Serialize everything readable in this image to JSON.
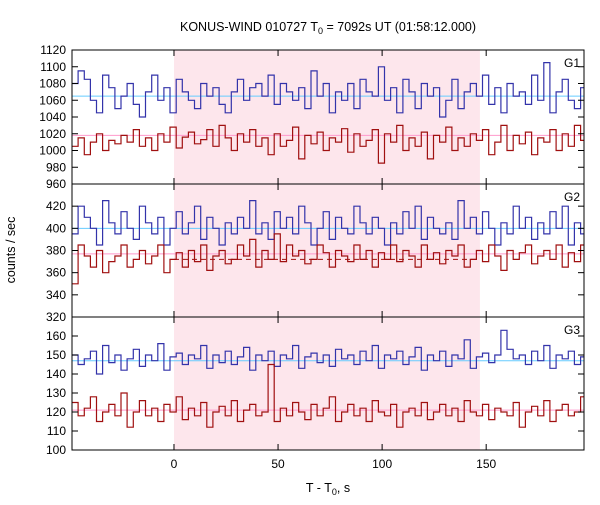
{
  "chart_data": {
    "type": "line",
    "title": "KONUS-WIND 010727 T",
    "title_subscript": "0",
    "title_suffix": " = 7092s UT (01:58:12.000)",
    "xlabel": "T - T",
    "xlabel_subscript": "0",
    "xlabel_suffix": ", s",
    "ylabel": "counts / sec",
    "xlim": [
      -49,
      197
    ],
    "x_ticks": [
      0,
      50,
      100,
      150
    ],
    "x_tick_labels": [
      "0",
      "50",
      "100",
      "150"
    ],
    "shaded_interval": [
      0,
      147
    ],
    "bin_width": 2.944,
    "colors": {
      "high_series": "#3333aa",
      "low_series": "#a01010",
      "high_background": "#66ccff",
      "low_background": "#ff99cc",
      "shade": "#fde6ec",
      "dashed_fit": "#a01010"
    },
    "panels": [
      {
        "label": "G1",
        "ylim": [
          960,
          1120
        ],
        "y_ticks": [
          960,
          980,
          1000,
          1020,
          1040,
          1060,
          1080,
          1100,
          1120
        ],
        "y_tick_labels": [
          "960",
          "980",
          "1000",
          "1020",
          "1040",
          "1060",
          "1080",
          "1100",
          "1120"
        ],
        "high_background": 1065,
        "low_background": 1018,
        "dashed_level": null,
        "high_series": [
          1080,
          1095,
          1085,
          1060,
          1045,
          1090,
          1075,
          1050,
          1065,
          1080,
          1055,
          1040,
          1070,
          1090,
          1060,
          1075,
          1045,
          1085,
          1070,
          1060,
          1050,
          1080,
          1065,
          1075,
          1055,
          1045,
          1070,
          1085,
          1060,
          1075,
          1080,
          1065,
          1090,
          1055,
          1080,
          1070,
          1060,
          1075,
          1050,
          1095,
          1065,
          1080,
          1045,
          1070,
          1060,
          1080,
          1050,
          1085,
          1070,
          1065,
          1100,
          1060,
          1075,
          1045,
          1085,
          1070,
          1050,
          1080,
          1065,
          1075,
          1040,
          1060,
          1085,
          1050,
          1070,
          1080,
          1065,
          1090,
          1055,
          1075,
          1045,
          1080,
          1065,
          1070,
          1055,
          1090,
          1060,
          1105,
          1045,
          1070,
          1085,
          1060,
          1050,
          1075,
          1065,
          1080,
          1045,
          1085,
          1060,
          1070,
          1055,
          1075,
          1080,
          1050,
          1065,
          1070,
          1085,
          1055,
          1075,
          1060,
          1045,
          1080,
          1065,
          1070,
          1055,
          1040,
          1085,
          1060,
          1075,
          1050,
          1070,
          1080,
          1065,
          1075,
          1060,
          1050,
          1080,
          1070,
          1055,
          1065,
          1075,
          1045,
          1085,
          1060,
          1070,
          1080,
          1055,
          1075,
          1065,
          1060,
          1050,
          1070,
          1085,
          1060,
          1075,
          1050,
          1080,
          1065
        ],
        "low_series": [
          1005,
          1015,
          995,
          1010,
          1020,
          1000,
          1012,
          1008,
          1018,
          1010,
          1025,
          1005,
          1015,
          1000,
          1020,
          1010,
          1028,
          1003,
          1016,
          1022,
          1008,
          1013,
          1025,
          1005,
          1030,
          1015,
          1000,
          1020,
          1010,
          1025,
          1005,
          1015,
          995,
          1020,
          1005,
          1012,
          1028,
          990,
          1018,
          1008,
          1022,
          1000,
          1015,
          1010,
          1026,
          998,
          1020,
          1005,
          1012,
          1025,
          985,
          1020,
          1010,
          1030,
          1000,
          1015,
          1005,
          1022,
          990,
          1018,
          1010,
          1028,
          1000,
          1015,
          1005,
          1020,
          1012,
          1025,
          995,
          1010,
          1030,
          1000,
          1018,
          1008,
          1022,
          995,
          1015,
          1010,
          1025,
          1000,
          1020,
          1005,
          1030,
          1012,
          990,
          1020,
          1008,
          1028,
          1000,
          1015,
          1010,
          1020,
          1005,
          1040,
          1018,
          1030,
          1000,
          1015,
          1022,
          1010,
          1028,
          1005,
          1020,
          1012,
          1000,
          1025,
          1015,
          1030,
          1010,
          995,
          1020,
          1005,
          1012,
          1025,
          1000,
          1015,
          1022,
          1010,
          1028,
          1005,
          1018,
          1000,
          1025,
          1015,
          1010,
          1030,
          1000,
          1020,
          1005,
          1015,
          1025,
          1012,
          1008,
          1022,
          1000,
          1018,
          1010,
          1015
        ]
      },
      {
        "label": "G2",
        "ylim": [
          320,
          440
        ],
        "y_ticks": [
          320,
          340,
          360,
          380,
          400,
          420
        ],
        "y_tick_labels": [
          "320",
          "340",
          "360",
          "380",
          "400",
          "420"
        ],
        "high_background": 400,
        "low_background": 377,
        "dashed_level": 372,
        "high_series": [
          395,
          420,
          410,
          400,
          385,
          425,
          405,
          395,
          415,
          400,
          390,
          420,
          405,
          395,
          410,
          385,
          400,
          415,
          395,
          405,
          420,
          390,
          410,
          400,
          385,
          405,
          395,
          410,
          400,
          425,
          395,
          405,
          390,
          415,
          400,
          410,
          395,
          420,
          405,
          385,
          400,
          415,
          390,
          410,
          400,
          395,
          420,
          405,
          395,
          410,
          400,
          385,
          405,
          395,
          415,
          400,
          420,
          390,
          410,
          400,
          395,
          405,
          390,
          425,
          400,
          410,
          395,
          415,
          400,
          385,
          405,
          395,
          420,
          400,
          410,
          390,
          405,
          395,
          415,
          400,
          420,
          385,
          405,
          395,
          410,
          400,
          390,
          415,
          405,
          395,
          420,
          400,
          410,
          385,
          405,
          395,
          400,
          415,
          390,
          410,
          400,
          395,
          420,
          405,
          385,
          400,
          410,
          395,
          415,
          400,
          390,
          405,
          395,
          420,
          400,
          410,
          385,
          405,
          395,
          415,
          400,
          390,
          410,
          405,
          395,
          420,
          400,
          385,
          410,
          395,
          405,
          400,
          415,
          390,
          405,
          400,
          410,
          395
        ],
        "low_series": [
          350,
          385,
          375,
          365,
          380,
          360,
          370,
          375,
          385,
          365,
          372,
          380,
          368,
          375,
          385,
          360,
          372,
          378,
          365,
          380,
          370,
          385,
          362,
          375,
          380,
          368,
          372,
          385,
          375,
          390,
          365,
          380,
          372,
          395,
          370,
          385,
          375,
          380,
          368,
          372,
          385,
          378,
          365,
          380,
          375,
          370,
          385,
          372,
          380,
          365,
          378,
          372,
          385,
          370,
          380,
          375,
          365,
          385,
          372,
          378,
          368,
          380,
          375,
          385,
          365,
          372,
          380,
          370,
          385,
          375,
          362,
          380,
          372,
          378,
          385,
          368,
          375,
          380,
          372,
          385,
          365,
          378,
          370,
          385,
          375,
          380,
          368,
          372,
          385,
          375,
          380,
          365,
          378,
          372,
          385,
          370,
          380,
          375,
          365,
          385,
          372,
          378,
          368,
          380,
          375,
          385,
          365,
          372,
          380,
          370,
          385,
          375,
          362,
          380,
          372,
          378,
          385,
          368,
          375,
          380,
          372,
          385,
          365,
          378,
          370,
          385,
          375,
          380,
          368,
          372,
          385,
          375,
          380,
          365,
          378,
          372,
          385,
          370,
          380,
          375
        ]
      },
      {
        "label": "G3",
        "ylim": [
          100,
          170
        ],
        "y_ticks": [
          100,
          110,
          120,
          130,
          140,
          150,
          160
        ],
        "y_tick_labels": [
          "100",
          "110",
          "120",
          "130",
          "140",
          "150",
          "160"
        ],
        "high_background": 147,
        "low_background": 121,
        "dashed_level": null,
        "high_series": [
          150,
          145,
          148,
          152,
          140,
          155,
          146,
          150,
          142,
          148,
          153,
          144,
          150,
          147,
          156,
          142,
          149,
          151,
          145,
          150,
          148,
          155,
          143,
          150,
          146,
          152,
          145,
          149,
          154,
          142,
          150,
          147,
          152,
          144,
          150,
          148,
          155,
          143,
          149,
          151,
          146,
          150,
          144,
          153,
          148,
          150,
          145,
          152,
          147,
          155,
          143,
          150,
          148,
          152,
          145,
          149,
          154,
          142,
          150,
          147,
          152,
          144,
          150,
          148,
          158,
          143,
          149,
          151,
          146,
          150,
          163,
          153,
          148,
          150,
          145,
          152,
          147,
          155,
          143,
          150,
          148,
          152,
          145,
          149,
          154,
          142,
          150,
          147,
          152,
          144,
          150,
          148,
          155,
          143,
          149,
          151,
          146,
          150,
          144,
          153,
          148,
          150,
          145,
          152,
          147,
          155,
          143,
          150,
          148,
          152,
          145,
          149,
          154,
          142,
          150,
          147,
          152,
          144,
          150,
          148,
          155,
          143,
          149,
          151,
          146,
          150,
          144,
          153,
          148,
          150,
          145,
          152,
          147,
          155,
          143,
          150,
          148,
          152
        ],
        "low_series": [
          125,
          118,
          122,
          128,
          115,
          120,
          124,
          118,
          130,
          112,
          120,
          126,
          118,
          122,
          115,
          124,
          120,
          128,
          116,
          122,
          118,
          125,
          112,
          120,
          123,
          118,
          126,
          115,
          121,
          124,
          118,
          120,
          145,
          115,
          122,
          118,
          125,
          120,
          116,
          124,
          118,
          122,
          128,
          115,
          120,
          124,
          118,
          122,
          115,
          126,
          120,
          118,
          124,
          112,
          120,
          122,
          118,
          125,
          116,
          120,
          124,
          118,
          122,
          115,
          126,
          120,
          118,
          124,
          116,
          122,
          120,
          118,
          125,
          112,
          120,
          123,
          118,
          126,
          115,
          121,
          124,
          118,
          120,
          128,
          115,
          122,
          118,
          125,
          120,
          116,
          124,
          118,
          122,
          128,
          115,
          120,
          124,
          118,
          122,
          115,
          126,
          120,
          118,
          124,
          112,
          120,
          122,
          118,
          125,
          116,
          120,
          124,
          118,
          122,
          115,
          126,
          120,
          118,
          124,
          116,
          122,
          120,
          118,
          125,
          112,
          120,
          123,
          118,
          126,
          115,
          121,
          124,
          118,
          120,
          128,
          115,
          122,
          118
        ]
      }
    ]
  }
}
